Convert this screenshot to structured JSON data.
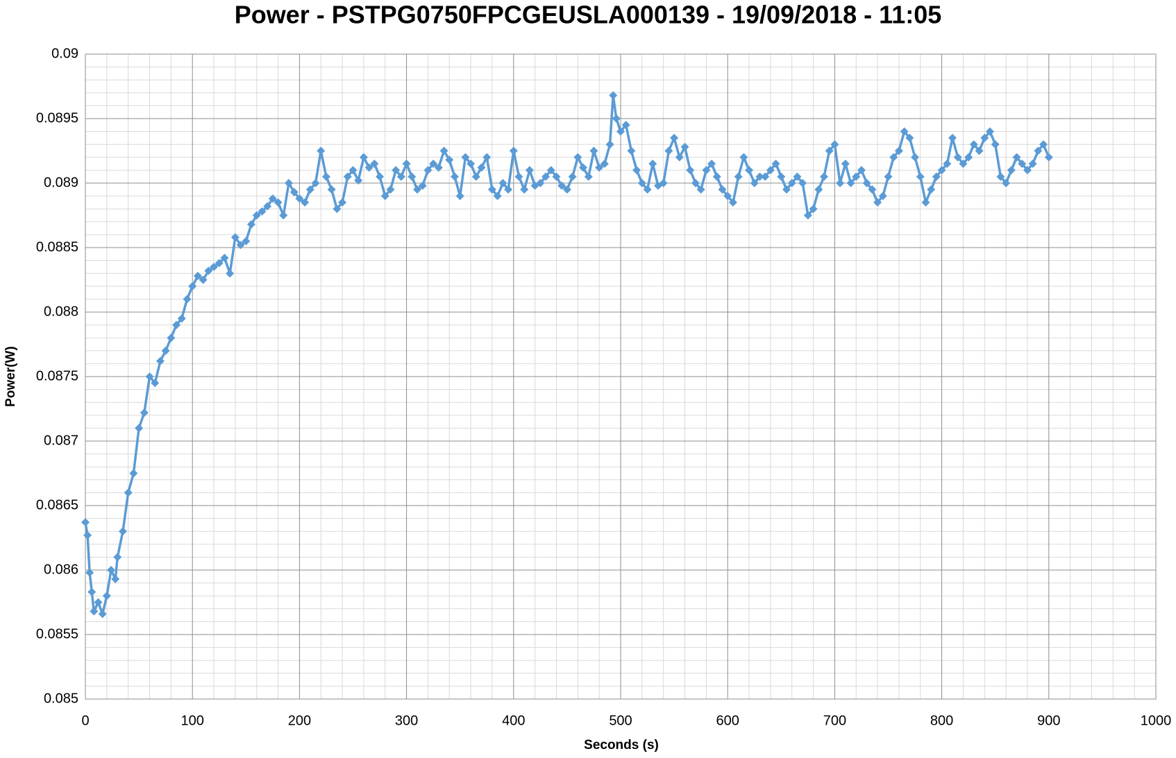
{
  "chart_data": {
    "type": "line",
    "title": "Power - PSTPG0750FPCGEUSLA000139 - 19/09/2018 - 11:05",
    "xlabel": "Seconds (s)",
    "ylabel": "Power(W)",
    "xlim": [
      0,
      1000
    ],
    "xticks": [
      0,
      100,
      200,
      300,
      400,
      500,
      600,
      700,
      800,
      900,
      1000
    ],
    "ylim": [
      0.085,
      0.09
    ],
    "yticks": [
      0.085,
      0.0855,
      0.086,
      0.0865,
      0.087,
      0.0875,
      0.088,
      0.0885,
      0.089,
      0.0895,
      0.09
    ],
    "grid": true,
    "x": [
      0,
      2,
      4,
      6,
      8,
      12,
      16,
      20,
      24,
      28,
      30,
      35,
      40,
      45,
      50,
      55,
      60,
      65,
      70,
      75,
      80,
      85,
      90,
      95,
      100,
      105,
      110,
      115,
      120,
      125,
      130,
      135,
      140,
      145,
      150,
      155,
      160,
      165,
      170,
      175,
      180,
      185,
      190,
      195,
      200,
      205,
      210,
      215,
      220,
      225,
      230,
      235,
      240,
      245,
      250,
      255,
      260,
      265,
      270,
      275,
      280,
      285,
      290,
      295,
      300,
      305,
      310,
      315,
      320,
      325,
      330,
      335,
      340,
      345,
      350,
      355,
      360,
      365,
      370,
      375,
      380,
      385,
      390,
      395,
      400,
      405,
      410,
      415,
      420,
      425,
      430,
      435,
      440,
      445,
      450,
      455,
      460,
      465,
      470,
      475,
      480,
      485,
      490,
      493,
      496,
      500,
      505,
      510,
      515,
      520,
      525,
      530,
      535,
      540,
      545,
      550,
      555,
      560,
      565,
      570,
      575,
      580,
      585,
      590,
      595,
      600,
      605,
      610,
      615,
      620,
      625,
      630,
      635,
      640,
      645,
      650,
      655,
      660,
      665,
      670,
      675,
      680,
      685,
      690,
      695,
      700,
      705,
      710,
      715,
      720,
      725,
      730,
      735,
      740,
      745,
      750,
      755,
      760,
      765,
      770,
      775,
      780,
      785,
      790,
      795,
      800,
      805,
      810,
      815,
      820,
      825,
      830,
      835,
      840,
      845,
      850,
      855,
      860,
      865,
      870,
      875,
      880,
      885,
      890,
      895,
      900
    ],
    "series": [
      {
        "name": "Power",
        "color": "#5b9bd5",
        "values": [
          0.08637,
          0.08627,
          0.08598,
          0.08583,
          0.08568,
          0.08575,
          0.08566,
          0.0858,
          0.086,
          0.08593,
          0.0861,
          0.0863,
          0.0866,
          0.08675,
          0.0871,
          0.08722,
          0.0875,
          0.08745,
          0.08762,
          0.0877,
          0.0878,
          0.0879,
          0.08795,
          0.0881,
          0.0882,
          0.08828,
          0.08825,
          0.08832,
          0.08835,
          0.08838,
          0.08842,
          0.0883,
          0.08858,
          0.08852,
          0.08855,
          0.08868,
          0.08875,
          0.08878,
          0.08882,
          0.08888,
          0.08885,
          0.08875,
          0.089,
          0.08893,
          0.08888,
          0.08885,
          0.08895,
          0.089,
          0.08925,
          0.08905,
          0.08895,
          0.0888,
          0.08885,
          0.08905,
          0.0891,
          0.08902,
          0.0892,
          0.08912,
          0.08915,
          0.08905,
          0.0889,
          0.08895,
          0.0891,
          0.08905,
          0.08915,
          0.08905,
          0.08895,
          0.08898,
          0.0891,
          0.08915,
          0.08912,
          0.08925,
          0.08918,
          0.08905,
          0.0889,
          0.0892,
          0.08915,
          0.08905,
          0.08912,
          0.0892,
          0.08895,
          0.0889,
          0.089,
          0.08895,
          0.08925,
          0.08905,
          0.08895,
          0.0891,
          0.08898,
          0.089,
          0.08905,
          0.0891,
          0.08905,
          0.08898,
          0.08895,
          0.08905,
          0.0892,
          0.08912,
          0.08905,
          0.08925,
          0.08912,
          0.08915,
          0.0893,
          0.08968,
          0.0895,
          0.0894,
          0.08945,
          0.08925,
          0.0891,
          0.089,
          0.08895,
          0.08915,
          0.08898,
          0.089,
          0.08925,
          0.08935,
          0.0892,
          0.08928,
          0.0891,
          0.089,
          0.08895,
          0.0891,
          0.08915,
          0.08905,
          0.08895,
          0.0889,
          0.08885,
          0.08905,
          0.0892,
          0.0891,
          0.089,
          0.08905,
          0.08905,
          0.0891,
          0.08915,
          0.08905,
          0.08895,
          0.089,
          0.08905,
          0.089,
          0.08875,
          0.0888,
          0.08895,
          0.08905,
          0.08925,
          0.0893,
          0.089,
          0.08915,
          0.089,
          0.08905,
          0.0891,
          0.089,
          0.08895,
          0.08885,
          0.0889,
          0.08905,
          0.0892,
          0.08925,
          0.0894,
          0.08935,
          0.0892,
          0.08905,
          0.08885,
          0.08895,
          0.08905,
          0.0891,
          0.08915,
          0.08935,
          0.0892,
          0.08915,
          0.0892,
          0.0893,
          0.08925,
          0.08935,
          0.0894,
          0.0893,
          0.08905,
          0.089,
          0.0891,
          0.0892,
          0.08915,
          0.0891,
          0.08915,
          0.08925,
          0.0893,
          0.0892
        ]
      }
    ]
  }
}
